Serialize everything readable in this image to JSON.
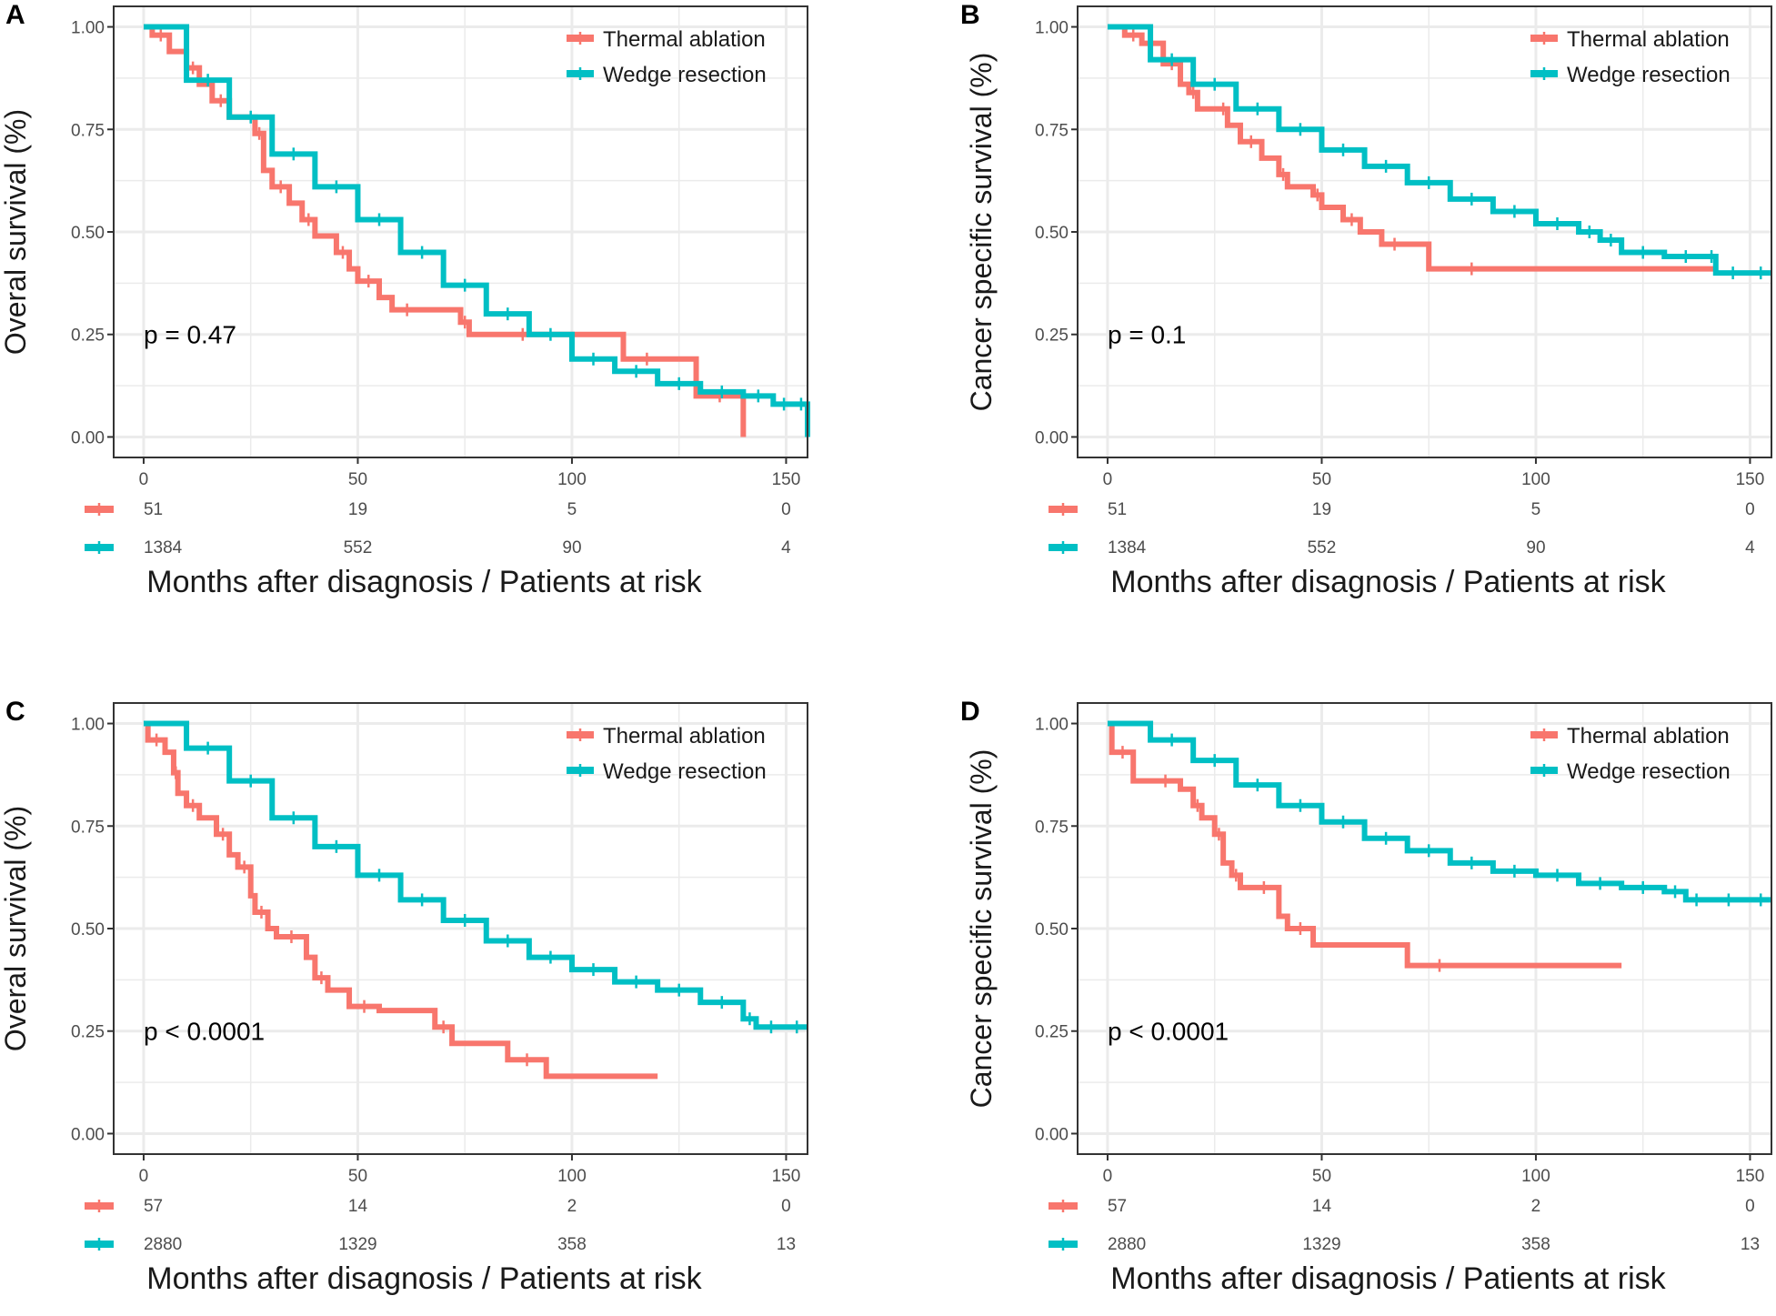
{
  "colors": {
    "thermal": "#F8766D",
    "wedge": "#00BFC4",
    "grid": "#EBEBEB",
    "axis": "#333333"
  },
  "chart_data": [
    {
      "panel": "A",
      "type": "line",
      "ylabel": "Overal survival (%)",
      "xlabel": "Months after disagnosis / Patients at risk",
      "xlim": [
        -7,
        155
      ],
      "ylim": [
        -0.05,
        1.05
      ],
      "x_ticks": [
        "0",
        "50",
        "100",
        "150"
      ],
      "y_ticks": [
        "0.00",
        "0.25",
        "0.50",
        "0.75",
        "1.00"
      ],
      "legend": [
        "Thermal ablation",
        "Wedge resection"
      ],
      "p_value": "p = 0.47",
      "series": [
        {
          "name": "Thermal ablation",
          "x": [
            0,
            2,
            6,
            10,
            13,
            16,
            20,
            26,
            28,
            30,
            34,
            37,
            40,
            45,
            48,
            50,
            55,
            58,
            65,
            74,
            76,
            82,
            95,
            112,
            123,
            129,
            140
          ],
          "y": [
            1.0,
            0.98,
            0.94,
            0.9,
            0.86,
            0.82,
            0.78,
            0.74,
            0.65,
            0.61,
            0.57,
            0.53,
            0.49,
            0.45,
            0.41,
            0.38,
            0.34,
            0.31,
            0.31,
            0.28,
            0.25,
            0.25,
            0.25,
            0.19,
            0.19,
            0.1,
            0.0
          ]
        },
        {
          "name": "Wedge resection",
          "x": [
            0,
            10,
            20,
            30,
            40,
            50,
            60,
            70,
            80,
            90,
            100,
            110,
            120,
            130,
            140,
            147,
            152,
            155
          ],
          "y": [
            1.0,
            0.87,
            0.78,
            0.69,
            0.61,
            0.53,
            0.45,
            0.37,
            0.3,
            0.25,
            0.19,
            0.16,
            0.13,
            0.11,
            0.1,
            0.08,
            0.08,
            0.0
          ]
        }
      ],
      "risk_table": {
        "x": [
          0,
          50,
          100,
          150
        ],
        "rows": [
          {
            "name": "Thermal ablation",
            "values": [
              "51",
              "19",
              "5",
              "0"
            ]
          },
          {
            "name": "Wedge resection",
            "values": [
              "1384",
              "552",
              "90",
              "4"
            ]
          }
        ]
      }
    },
    {
      "panel": "B",
      "type": "line",
      "ylabel": "Cancer specific survival (%)",
      "xlabel": "Months after disagnosis / Patients at risk",
      "xlim": [
        -7,
        155
      ],
      "ylim": [
        -0.05,
        1.05
      ],
      "x_ticks": [
        "0",
        "50",
        "100",
        "150"
      ],
      "y_ticks": [
        "0.00",
        "0.25",
        "0.50",
        "0.75",
        "1.00"
      ],
      "legend": [
        "Thermal ablation",
        "Wedge resection"
      ],
      "p_value": "p = 0.1",
      "series": [
        {
          "name": "Thermal ablation",
          "x": [
            0,
            4,
            8,
            13,
            17,
            19,
            21,
            26,
            28,
            31,
            36,
            40,
            42,
            48,
            50,
            55,
            59,
            64,
            70,
            75,
            95,
            142
          ],
          "y": [
            1.0,
            0.98,
            0.96,
            0.91,
            0.86,
            0.84,
            0.8,
            0.8,
            0.76,
            0.72,
            0.68,
            0.64,
            0.61,
            0.59,
            0.56,
            0.53,
            0.5,
            0.47,
            0.47,
            0.41,
            0.41,
            0.41
          ]
        },
        {
          "name": "Wedge resection",
          "x": [
            0,
            10,
            20,
            30,
            40,
            50,
            60,
            70,
            80,
            90,
            100,
            110,
            115,
            120,
            130,
            140,
            142,
            150,
            155
          ],
          "y": [
            1.0,
            0.92,
            0.86,
            0.8,
            0.75,
            0.7,
            0.66,
            0.62,
            0.58,
            0.55,
            0.52,
            0.5,
            0.48,
            0.45,
            0.44,
            0.44,
            0.4,
            0.4,
            0.4
          ]
        }
      ],
      "risk_table": {
        "x": [
          0,
          50,
          100,
          150
        ],
        "rows": [
          {
            "name": "Thermal ablation",
            "values": [
              "51",
              "19",
              "5",
              "0"
            ]
          },
          {
            "name": "Wedge resection",
            "values": [
              "1384",
              "552",
              "90",
              "4"
            ]
          }
        ]
      }
    },
    {
      "panel": "C",
      "type": "line",
      "ylabel": "Overal survival (%)",
      "xlabel": "Months after disagnosis / Patients at risk",
      "xlim": [
        -7,
        155
      ],
      "ylim": [
        -0.05,
        1.05
      ],
      "x_ticks": [
        "0",
        "50",
        "100",
        "150"
      ],
      "y_ticks": [
        "0.00",
        "0.25",
        "0.50",
        "0.75",
        "1.00"
      ],
      "legend": [
        "Thermal ablation",
        "Wedge resection"
      ],
      "p_value": "p < 0.0001",
      "series": [
        {
          "name": "Thermal ablation",
          "x": [
            0,
            1,
            5,
            7,
            8,
            10,
            13,
            17,
            20,
            22,
            25,
            26,
            29,
            31,
            38,
            40,
            43,
            48,
            55,
            68,
            72,
            85,
            94,
            120
          ],
          "y": [
            1.0,
            0.96,
            0.93,
            0.88,
            0.83,
            0.8,
            0.77,
            0.73,
            0.68,
            0.65,
            0.58,
            0.54,
            0.5,
            0.48,
            0.43,
            0.38,
            0.35,
            0.31,
            0.3,
            0.26,
            0.22,
            0.18,
            0.14,
            0.14
          ]
        },
        {
          "name": "Wedge resection",
          "x": [
            0,
            10,
            20,
            30,
            40,
            50,
            60,
            70,
            80,
            90,
            100,
            110,
            120,
            130,
            140,
            143,
            150,
            155
          ],
          "y": [
            1.0,
            0.94,
            0.86,
            0.77,
            0.7,
            0.63,
            0.57,
            0.52,
            0.47,
            0.43,
            0.4,
            0.37,
            0.35,
            0.32,
            0.28,
            0.26,
            0.26,
            0.26
          ]
        }
      ],
      "risk_table": {
        "x": [
          0,
          50,
          100,
          150
        ],
        "rows": [
          {
            "name": "Thermal ablation",
            "values": [
              "57",
              "14",
              "2",
              "0"
            ]
          },
          {
            "name": "Wedge resection",
            "values": [
              "2880",
              "1329",
              "358",
              "13"
            ]
          }
        ]
      }
    },
    {
      "panel": "D",
      "type": "line",
      "ylabel": "Cancer specific survival (%)",
      "xlabel": "Months after disagnosis / Patients at risk",
      "xlim": [
        -7,
        155
      ],
      "ylim": [
        -0.05,
        1.05
      ],
      "x_ticks": [
        "0",
        "50",
        "100",
        "150"
      ],
      "y_ticks": [
        "0.00",
        "0.25",
        "0.50",
        "0.75",
        "1.00"
      ],
      "legend": [
        "Thermal ablation",
        "Wedge resection"
      ],
      "p_value": "p < 0.0001",
      "series": [
        {
          "name": "Thermal ablation",
          "x": [
            0,
            1,
            6,
            10,
            17,
            20,
            22,
            25,
            27,
            29,
            31,
            33,
            40,
            42,
            48,
            70,
            85,
            120
          ],
          "y": [
            1.0,
            0.93,
            0.86,
            0.86,
            0.84,
            0.8,
            0.77,
            0.73,
            0.66,
            0.63,
            0.6,
            0.6,
            0.53,
            0.5,
            0.46,
            0.41,
            0.41,
            0.41
          ]
        },
        {
          "name": "Wedge resection",
          "x": [
            0,
            10,
            20,
            30,
            40,
            50,
            60,
            70,
            80,
            90,
            100,
            110,
            120,
            130,
            135,
            140,
            150,
            155
          ],
          "y": [
            1.0,
            0.96,
            0.91,
            0.85,
            0.8,
            0.76,
            0.72,
            0.69,
            0.66,
            0.64,
            0.63,
            0.61,
            0.6,
            0.59,
            0.57,
            0.57,
            0.57,
            0.57
          ]
        }
      ],
      "risk_table": {
        "x": [
          0,
          50,
          100,
          150
        ],
        "rows": [
          {
            "name": "Thermal ablation",
            "values": [
              "57",
              "14",
              "2",
              "0"
            ]
          },
          {
            "name": "Wedge resection",
            "values": [
              "2880",
              "1329",
              "358",
              "13"
            ]
          }
        ]
      }
    }
  ]
}
